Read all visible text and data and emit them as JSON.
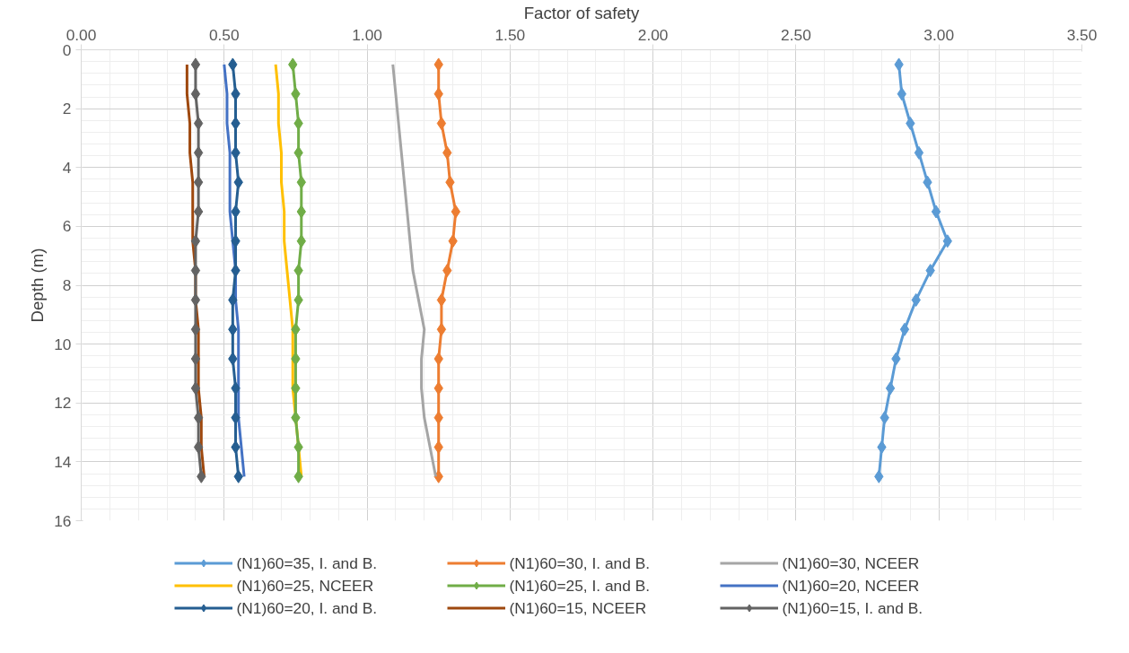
{
  "chart_data": {
    "type": "line",
    "orientation": "horizontal",
    "xlabel": "Factor of safety",
    "ylabel": "Depth (m)",
    "x": [
      0.5,
      1.5,
      2.5,
      3.5,
      4.5,
      5.5,
      6.5,
      7.5,
      8.5,
      9.5,
      10.5,
      11.5,
      12.5,
      13.5,
      14.5
    ],
    "xlim": [
      0,
      3.5
    ],
    "xticks": [
      {
        "value": 0,
        "label": "0.00"
      },
      {
        "value": 0.5,
        "label": "0.50"
      },
      {
        "value": 1,
        "label": "1.00"
      },
      {
        "value": 1.5,
        "label": "1.50"
      },
      {
        "value": 2,
        "label": "2.00"
      },
      {
        "value": 2.5,
        "label": "2.50"
      },
      {
        "value": 3,
        "label": "3.00"
      },
      {
        "value": 3.5,
        "label": "3.50"
      }
    ],
    "ylim": [
      16,
      0
    ],
    "yticks": [
      0,
      2,
      4,
      6,
      8,
      10,
      12,
      14,
      16
    ],
    "grid": true,
    "legend": "bottom",
    "series": [
      {
        "name": "(N1)60=35, I. and B.",
        "color": "#5b9bd5",
        "marker": "diamond",
        "values": [
          2.86,
          2.87,
          2.9,
          2.93,
          2.96,
          2.99,
          3.03,
          2.97,
          2.92,
          2.88,
          2.85,
          2.83,
          2.81,
          2.8,
          2.79
        ]
      },
      {
        "name": "(N1)60=30, I. and B.",
        "color": "#ed7d31",
        "marker": "diamond",
        "values": [
          1.25,
          1.25,
          1.26,
          1.28,
          1.29,
          1.31,
          1.3,
          1.28,
          1.26,
          1.26,
          1.25,
          1.25,
          1.25,
          1.25,
          1.25
        ]
      },
      {
        "name": "(N1)60=30, NCEER",
        "color": "#a5a5a5",
        "marker": "none",
        "values": [
          1.09,
          1.1,
          1.11,
          1.12,
          1.13,
          1.14,
          1.15,
          1.16,
          1.18,
          1.2,
          1.19,
          1.19,
          1.2,
          1.22,
          1.24
        ]
      },
      {
        "name": "(N1)60=25, NCEER",
        "color": "#ffc000",
        "marker": "none",
        "values": [
          0.68,
          0.69,
          0.69,
          0.7,
          0.7,
          0.71,
          0.71,
          0.72,
          0.73,
          0.74,
          0.74,
          0.74,
          0.75,
          0.76,
          0.77
        ]
      },
      {
        "name": "(N1)60=25, I. and B.",
        "color": "#70ad47",
        "marker": "diamond",
        "values": [
          0.74,
          0.75,
          0.76,
          0.76,
          0.77,
          0.77,
          0.77,
          0.76,
          0.76,
          0.75,
          0.75,
          0.75,
          0.75,
          0.76,
          0.76
        ]
      },
      {
        "name": "(N1)60=20, NCEER",
        "color": "#4472c4",
        "marker": "none",
        "values": [
          0.5,
          0.51,
          0.51,
          0.52,
          0.52,
          0.52,
          0.53,
          0.54,
          0.54,
          0.55,
          0.55,
          0.55,
          0.55,
          0.56,
          0.57
        ]
      },
      {
        "name": "(N1)60=20, I. and B.",
        "color": "#255e91",
        "marker": "diamond",
        "values": [
          0.53,
          0.54,
          0.54,
          0.54,
          0.55,
          0.54,
          0.54,
          0.54,
          0.53,
          0.53,
          0.53,
          0.54,
          0.54,
          0.54,
          0.55
        ]
      },
      {
        "name": "(N1)60=15, NCEER",
        "color": "#9e480e",
        "marker": "none",
        "values": [
          0.37,
          0.37,
          0.38,
          0.38,
          0.39,
          0.39,
          0.39,
          0.4,
          0.4,
          0.41,
          0.41,
          0.41,
          0.42,
          0.42,
          0.43
        ]
      },
      {
        "name": "(N1)60=15, I. and B.",
        "color": "#636363",
        "marker": "diamond",
        "values": [
          0.4,
          0.4,
          0.41,
          0.41,
          0.41,
          0.41,
          0.4,
          0.4,
          0.4,
          0.4,
          0.4,
          0.4,
          0.41,
          0.41,
          0.42
        ]
      }
    ]
  }
}
